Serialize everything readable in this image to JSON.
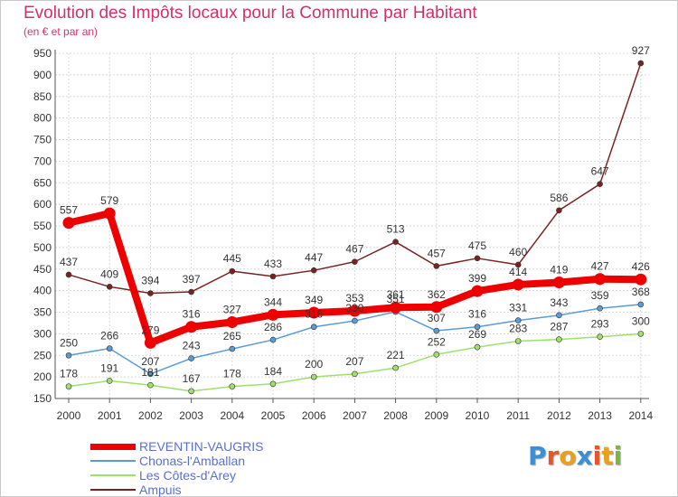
{
  "title": "Evolution des Impôts locaux pour la Commune par Habitant",
  "subtitle": "(en € et par an)",
  "logo": {
    "letters": [
      "P",
      "r",
      "o",
      "x",
      "i",
      "t",
      "i"
    ],
    "colors": [
      "#3a8fd8",
      "#e8552a",
      "#e8a21a",
      "#3a8fd8",
      "#e8552a",
      "#e8a21a",
      "#7ab83a"
    ]
  },
  "chart_data": {
    "type": "line",
    "title": "Evolution des Impôts locaux pour la Commune par Habitant",
    "subtitle": "(en € et par an)",
    "xlabel": "",
    "ylabel": "",
    "x": [
      "2000",
      "2001",
      "2002",
      "2003",
      "2004",
      "2005",
      "2006",
      "2007",
      "2008",
      "2009",
      "2010",
      "2011",
      "2012",
      "2013",
      "2014"
    ],
    "ylim": [
      150,
      950
    ],
    "yticks": [
      "150",
      "200",
      "250",
      "300",
      "350",
      "400",
      "450",
      "500",
      "550",
      "600",
      "650",
      "700",
      "750",
      "800",
      "850",
      "900",
      "950"
    ],
    "grid": true,
    "legend_position": "bottom-left",
    "series": [
      {
        "name": "Ampuis",
        "color": "#7a2222",
        "values": [
          437,
          409,
          394,
          397,
          445,
          433,
          447,
          467,
          513,
          457,
          475,
          460,
          586,
          647,
          927
        ]
      },
      {
        "name": "Les Côtes-d'Arey",
        "color": "#9ee06a",
        "values": [
          178,
          191,
          181,
          167,
          178,
          184,
          200,
          207,
          221,
          252,
          269,
          283,
          287,
          293,
          300
        ]
      },
      {
        "name": "Chonas-l'Amballan",
        "color": "#5b9bd5",
        "values": [
          250,
          266,
          207,
          243,
          265,
          286,
          316,
          330,
          351,
          307,
          316,
          331,
          343,
          359,
          368
        ]
      },
      {
        "name": "REVENTIN-VAUGRIS",
        "color": "#ee0000",
        "values": [
          557,
          579,
          279,
          316,
          327,
          344,
          349,
          353,
          361,
          362,
          399,
          414,
          419,
          427,
          426
        ]
      }
    ]
  },
  "legend": [
    {
      "label": "REVENTIN-VAUGRIS",
      "color": "#ee0000"
    },
    {
      "label": "Chonas-l'Amballan",
      "color": "#5b9bd5"
    },
    {
      "label": "Les Côtes-d'Arey",
      "color": "#9ee06a"
    },
    {
      "label": "Ampuis",
      "color": "#7a2222"
    }
  ]
}
